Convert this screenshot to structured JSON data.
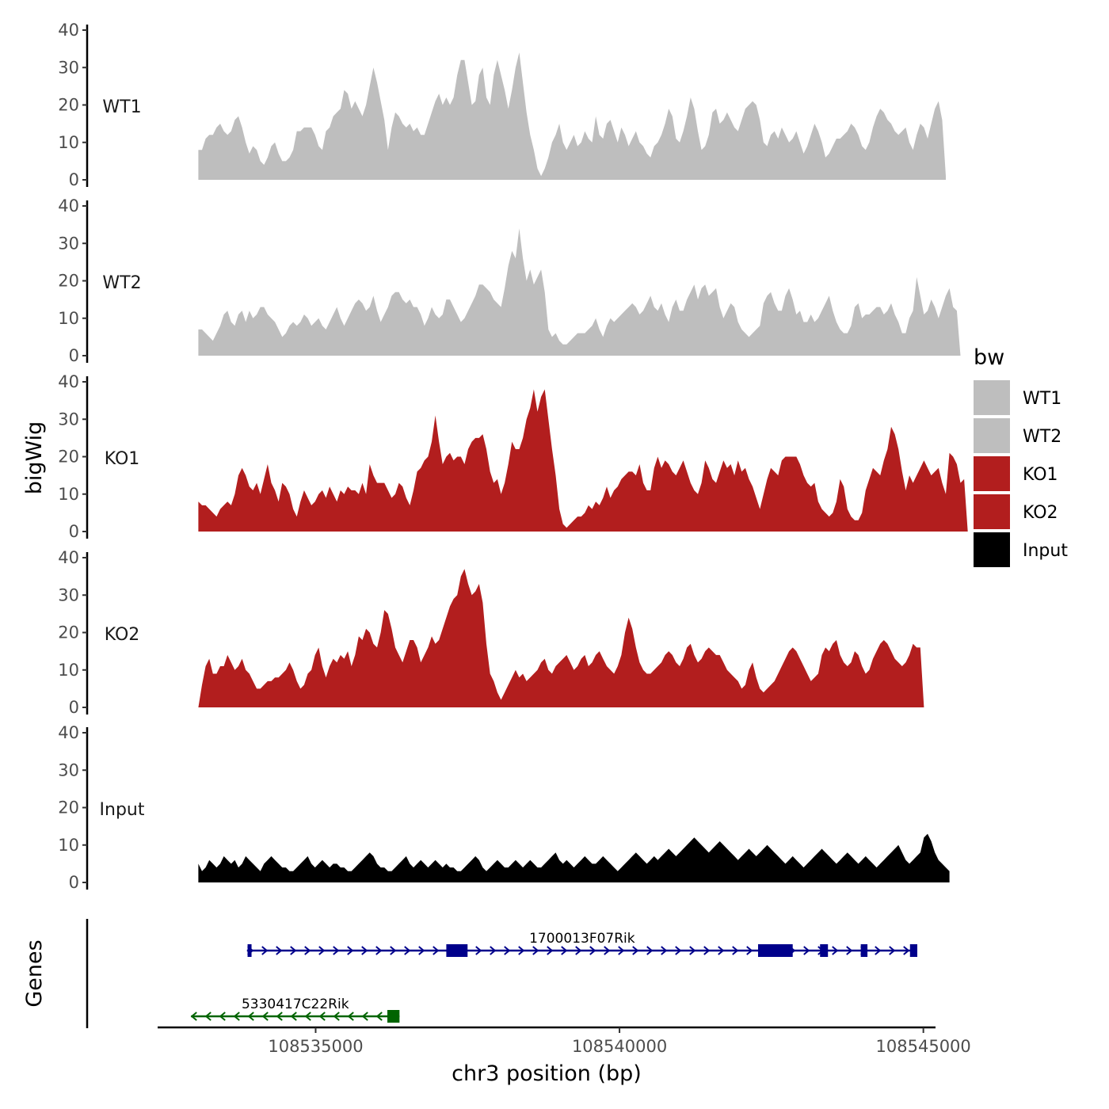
{
  "chart_data": {
    "type": "area",
    "region": "chr3",
    "xlabel": "chr3 position (bp)",
    "ylabel": "bigWig",
    "xlim": [
      108532400,
      108545200
    ],
    "x_ticks": [
      108535000,
      108540000,
      108545000
    ],
    "x_tick_labels": [
      "108535000",
      "108540000",
      "108545000"
    ],
    "ylim": [
      0,
      40
    ],
    "y_ticks": [
      0,
      10,
      20,
      30,
      40
    ],
    "y_tick_labels": [
      "0",
      "10",
      "20",
      "30",
      "40"
    ],
    "x_start": 108533070,
    "x_step": 60,
    "tracks": [
      {
        "name": "WT1",
        "label": "WT1",
        "color": "#bebebe",
        "values": [
          8,
          8,
          11,
          12,
          12,
          14,
          15,
          13,
          12,
          13,
          16,
          17,
          14,
          10,
          7,
          9,
          8,
          5,
          4,
          6,
          9,
          10,
          7,
          5,
          5,
          6,
          8,
          13,
          13,
          14,
          14,
          14,
          12,
          9,
          8,
          13,
          14,
          17,
          18,
          19,
          24,
          23,
          19,
          21,
          19,
          17,
          20,
          25,
          30,
          26,
          21,
          16,
          8,
          14,
          18,
          17,
          15,
          14,
          15,
          13,
          14,
          12,
          12,
          15,
          18,
          21,
          23,
          20,
          22,
          20,
          22,
          28,
          32,
          32,
          26,
          20,
          21,
          28,
          30,
          22,
          20,
          28,
          32,
          28,
          24,
          19,
          24,
          30,
          34,
          26,
          18,
          12,
          8,
          3,
          1,
          3,
          6,
          10,
          12,
          15,
          10,
          8,
          10,
          12,
          9,
          10,
          13,
          11,
          10,
          17,
          12,
          11,
          15,
          16,
          13,
          10,
          14,
          12,
          9,
          11,
          13,
          10,
          9,
          7,
          6,
          9,
          10,
          12,
          15,
          19,
          17,
          11,
          10,
          13,
          17,
          22,
          19,
          13,
          8,
          9,
          12,
          18,
          19,
          15,
          16,
          18,
          16,
          14,
          13,
          16,
          19,
          20,
          21,
          20,
          16,
          10,
          9,
          12,
          13,
          11,
          14,
          12,
          10,
          11,
          13,
          10,
          7,
          9,
          12,
          15,
          13,
          10,
          6,
          7,
          9,
          11,
          11,
          12,
          13,
          15,
          14,
          12,
          9,
          8,
          10,
          14,
          17,
          19,
          18,
          16,
          15,
          13,
          12,
          13,
          14,
          10,
          8,
          12,
          15,
          14,
          11,
          15,
          19,
          21,
          16,
          1
        ]
      },
      {
        "name": "WT2",
        "label": "WT2",
        "color": "#bebebe",
        "values": [
          7,
          7,
          6,
          5,
          4,
          6,
          8,
          11,
          12,
          9,
          8,
          11,
          12,
          9,
          12,
          10,
          11,
          13,
          13,
          11,
          10,
          9,
          7,
          5,
          6,
          8,
          9,
          8,
          9,
          11,
          10,
          8,
          9,
          10,
          8,
          7,
          9,
          11,
          13,
          10,
          8,
          10,
          12,
          14,
          15,
          14,
          12,
          13,
          16,
          12,
          9,
          11,
          13,
          16,
          17,
          17,
          15,
          14,
          15,
          13,
          13,
          11,
          8,
          10,
          13,
          11,
          10,
          11,
          15,
          15,
          13,
          11,
          9,
          10,
          12,
          14,
          16,
          19,
          19,
          18,
          17,
          15,
          14,
          13,
          18,
          24,
          28,
          26,
          34,
          26,
          20,
          23,
          19,
          21,
          23,
          17,
          7,
          5,
          6,
          4,
          3,
          3,
          4,
          5,
          6,
          6,
          6,
          7,
          8,
          10,
          7,
          5,
          8,
          10,
          9,
          10,
          11,
          12,
          13,
          14,
          13,
          11,
          12,
          14,
          16,
          13,
          12,
          14,
          11,
          9,
          13,
          15,
          12,
          12,
          15,
          17,
          19,
          15,
          18,
          19,
          16,
          17,
          18,
          13,
          10,
          12,
          14,
          13,
          9,
          7,
          6,
          5,
          6,
          7,
          8,
          14,
          16,
          17,
          14,
          12,
          12,
          16,
          18,
          15,
          11,
          12,
          9,
          9,
          11,
          9,
          10,
          12,
          14,
          16,
          12,
          9,
          7,
          6,
          6,
          8,
          13,
          14,
          10,
          11,
          11,
          12,
          13,
          13,
          11,
          12,
          14,
          11,
          9,
          6,
          6,
          10,
          12,
          21,
          16,
          11,
          12,
          15,
          13,
          10,
          13,
          16,
          18,
          13,
          12,
          0
        ]
      },
      {
        "name": "KO1",
        "label": "KO1",
        "color": "#b21e1e",
        "values": [
          8,
          7,
          7,
          6,
          5,
          4,
          6,
          7,
          8,
          7,
          10,
          15,
          17,
          15,
          12,
          11,
          13,
          10,
          14,
          18,
          13,
          11,
          8,
          13,
          12,
          10,
          6,
          4,
          8,
          11,
          9,
          7,
          8,
          10,
          11,
          9,
          12,
          10,
          8,
          11,
          10,
          12,
          11,
          11,
          10,
          13,
          10,
          18,
          15,
          13,
          13,
          13,
          11,
          9,
          10,
          13,
          12,
          9,
          7,
          11,
          16,
          17,
          19,
          20,
          24,
          31,
          24,
          18,
          20,
          21,
          19,
          20,
          20,
          18,
          22,
          24,
          25,
          25,
          26,
          22,
          16,
          13,
          14,
          10,
          13,
          18,
          24,
          22,
          22,
          25,
          30,
          33,
          38,
          32,
          36,
          38,
          30,
          22,
          15,
          6,
          2,
          1,
          2,
          3,
          4,
          4,
          5,
          7,
          6,
          8,
          7,
          9,
          12,
          9,
          11,
          12,
          14,
          15,
          16,
          16,
          15,
          18,
          13,
          11,
          11,
          17,
          20,
          17,
          19,
          18,
          16,
          15,
          17,
          19,
          16,
          13,
          11,
          10,
          13,
          19,
          17,
          14,
          13,
          16,
          19,
          17,
          18,
          15,
          19,
          16,
          17,
          14,
          12,
          9,
          6,
          10,
          14,
          17,
          16,
          15,
          19,
          20,
          20,
          20,
          20,
          18,
          15,
          13,
          12,
          13,
          8,
          6,
          5,
          4,
          5,
          8,
          14,
          12,
          6,
          4,
          3,
          3,
          5,
          11,
          14,
          17,
          16,
          15,
          19,
          22,
          28,
          26,
          22,
          16,
          11,
          15,
          13,
          15,
          17,
          19,
          17,
          15,
          16,
          17,
          13,
          10,
          21,
          20,
          18,
          13,
          14,
          0
        ]
      },
      {
        "name": "KO2",
        "label": "KO2",
        "color": "#b21e1e",
        "values": [
          0,
          6,
          11,
          13,
          9,
          9,
          11,
          11,
          14,
          12,
          10,
          11,
          13,
          10,
          9,
          7,
          5,
          5,
          6,
          7,
          7,
          8,
          8,
          9,
          10,
          12,
          10,
          7,
          5,
          6,
          9,
          10,
          14,
          16,
          11,
          8,
          11,
          13,
          12,
          14,
          13,
          15,
          11,
          14,
          19,
          18,
          21,
          20,
          17,
          16,
          20,
          26,
          25,
          21,
          16,
          14,
          12,
          15,
          18,
          18,
          16,
          12,
          14,
          16,
          19,
          17,
          18,
          21,
          24,
          27,
          29,
          30,
          35,
          37,
          33,
          30,
          31,
          33,
          28,
          17,
          9,
          7,
          4,
          2,
          4,
          6,
          8,
          10,
          8,
          9,
          7,
          8,
          9,
          10,
          12,
          13,
          10,
          9,
          11,
          12,
          13,
          14,
          12,
          10,
          11,
          13,
          14,
          11,
          12,
          14,
          15,
          13,
          11,
          10,
          9,
          11,
          14,
          20,
          24,
          21,
          16,
          12,
          10,
          9,
          9,
          10,
          11,
          12,
          14,
          15,
          14,
          12,
          11,
          13,
          16,
          17,
          14,
          12,
          13,
          15,
          16,
          15,
          14,
          14,
          12,
          10,
          9,
          8,
          7,
          5,
          6,
          10,
          12,
          8,
          5,
          4,
          5,
          6,
          7,
          9,
          11,
          13,
          15,
          16,
          15,
          13,
          11,
          9,
          7,
          8,
          9,
          14,
          16,
          15,
          17,
          18,
          14,
          12,
          11,
          12,
          15,
          14,
          11,
          9,
          10,
          13,
          15,
          17,
          18,
          17,
          15,
          13,
          12,
          11,
          12,
          14,
          17,
          16,
          16,
          0
        ]
      },
      {
        "name": "Input",
        "label": "Input",
        "color": "#000000",
        "values": [
          5,
          3,
          4,
          6,
          5,
          4,
          5,
          7,
          6,
          5,
          6,
          4,
          5,
          7,
          6,
          5,
          4,
          3,
          5,
          6,
          7,
          6,
          5,
          4,
          4,
          3,
          3,
          4,
          5,
          6,
          7,
          5,
          4,
          5,
          6,
          5,
          4,
          5,
          5,
          4,
          4,
          3,
          3,
          4,
          5,
          6,
          7,
          8,
          7,
          5,
          4,
          4,
          3,
          3,
          4,
          5,
          6,
          7,
          5,
          4,
          5,
          6,
          5,
          4,
          5,
          6,
          5,
          4,
          5,
          4,
          4,
          3,
          3,
          4,
          5,
          6,
          7,
          6,
          4,
          3,
          4,
          5,
          6,
          5,
          4,
          4,
          5,
          6,
          5,
          4,
          5,
          6,
          5,
          4,
          4,
          5,
          6,
          7,
          8,
          6,
          5,
          6,
          5,
          4,
          5,
          6,
          7,
          6,
          5,
          5,
          6,
          7,
          6,
          5,
          4,
          3,
          4,
          5,
          6,
          7,
          8,
          7,
          6,
          5,
          6,
          7,
          6,
          7,
          8,
          9,
          8,
          7,
          8,
          9,
          10,
          11,
          12,
          11,
          10,
          9,
          8,
          9,
          10,
          11,
          10,
          9,
          8,
          7,
          6,
          7,
          8,
          9,
          8,
          7,
          8,
          9,
          10,
          9,
          8,
          7,
          6,
          5,
          6,
          7,
          6,
          5,
          4,
          5,
          6,
          7,
          8,
          9,
          8,
          7,
          6,
          5,
          6,
          7,
          8,
          7,
          6,
          5,
          6,
          7,
          6,
          5,
          4,
          5,
          6,
          7,
          8,
          9,
          10,
          8,
          6,
          5,
          6,
          7,
          8,
          12,
          13,
          11,
          8,
          6,
          5,
          4,
          3
        ]
      }
    ],
    "genes": [
      {
        "name": "1700013F07Rik",
        "label": "1700013F07Rik",
        "strand": "+",
        "color": "#00008b",
        "start": 108533870,
        "end": 108544900,
        "exons": [
          [
            108533880,
            108533930
          ],
          [
            108537150,
            108537500
          ],
          [
            108542280,
            108542850
          ],
          [
            108543300,
            108543430
          ],
          [
            108543970,
            108544080
          ],
          [
            108544780,
            108544900
          ]
        ]
      },
      {
        "name": "5330417C22Rik",
        "label": "5330417C22Rik",
        "strand": "-",
        "color": "#006400",
        "start": 108532950,
        "end": 108536380,
        "exons": [
          [
            108536180,
            108536380
          ]
        ]
      }
    ],
    "gene_track_label": "Genes",
    "legend": {
      "title": "bw",
      "position": "right",
      "entries": [
        {
          "label": "WT1",
          "color": "#bebebe"
        },
        {
          "label": "WT2",
          "color": "#bebebe"
        },
        {
          "label": "KO1",
          "color": "#b21e1e"
        },
        {
          "label": "KO2",
          "color": "#b21e1e"
        },
        {
          "label": "Input",
          "color": "#000000"
        }
      ]
    }
  }
}
